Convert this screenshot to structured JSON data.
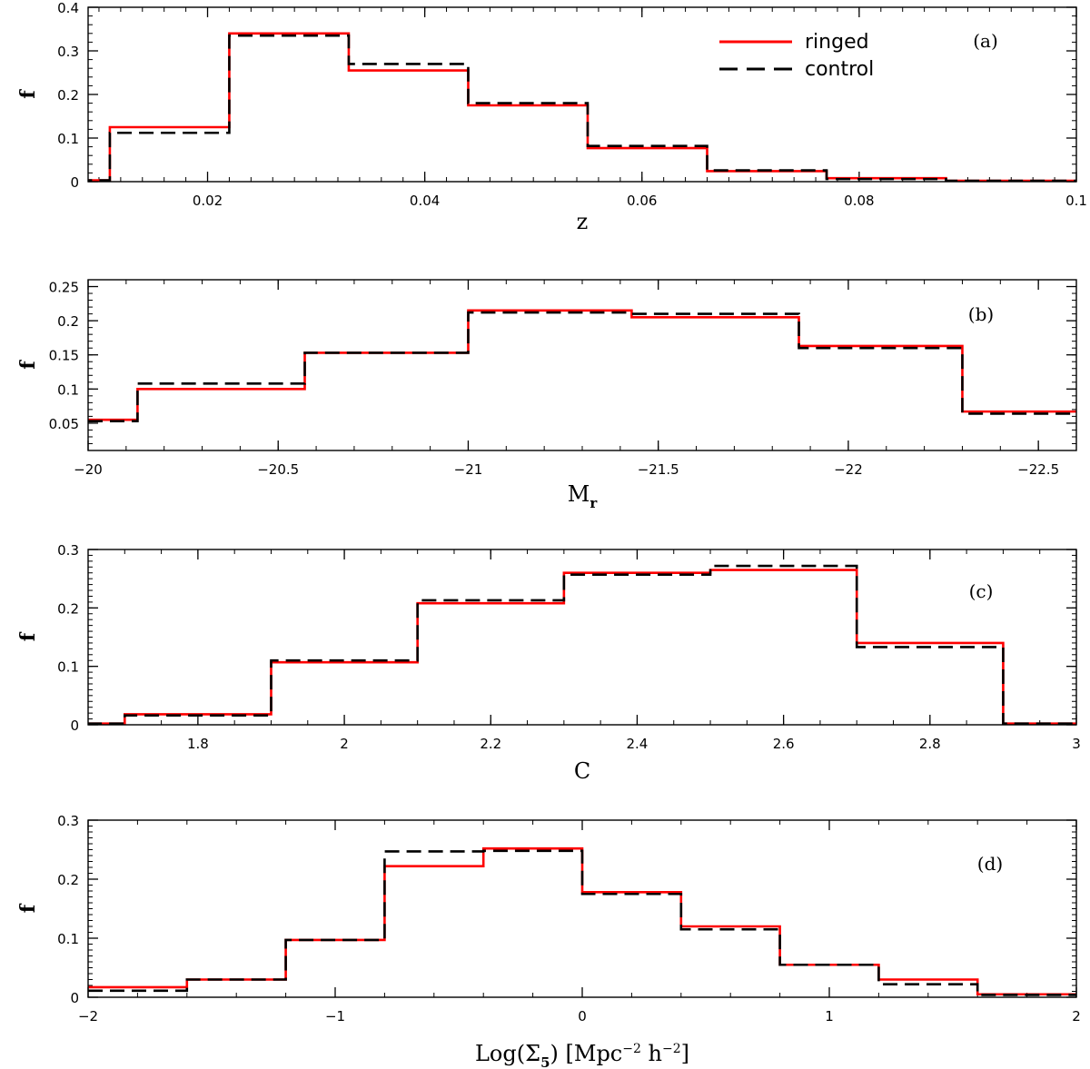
{
  "legend": {
    "ringed": "ringed",
    "control": "control"
  },
  "colors": {
    "ringed": "#ff0000",
    "control": "#000000",
    "axis": "#000000"
  },
  "chart_data": [
    {
      "type": "histogram",
      "panel": "(a)",
      "xlabel": "z",
      "ylabel": "f",
      "xlim": [
        0.009,
        0.1
      ],
      "ylim": [
        0,
        0.4
      ],
      "xticks": [
        0.02,
        0.04,
        0.06,
        0.08,
        0.1
      ],
      "xtick_labels": [
        "0.02",
        "0.04",
        "0.06",
        "0.08",
        "0.1"
      ],
      "yticks": [
        0,
        0.1,
        0.2,
        0.3,
        0.4
      ],
      "ytick_labels": [
        "0",
        "0.1",
        "0.2",
        "0.3",
        "0.4"
      ],
      "bin_edges": [
        0,
        0.011,
        0.022,
        0.033,
        0.044,
        0.055,
        0.066,
        0.077,
        0.088,
        0.1
      ],
      "series": [
        {
          "name": "ringed",
          "values": [
            0.003,
            0.125,
            0.34,
            0.255,
            0.175,
            0.077,
            0.024,
            0.008,
            0.002
          ]
        },
        {
          "name": "control",
          "values": [
            0.003,
            0.112,
            0.335,
            0.27,
            0.18,
            0.082,
            0.026,
            0.006,
            0.002
          ]
        }
      ]
    },
    {
      "type": "histogram",
      "panel": "(b)",
      "xlabel": "M",
      "xlabel_sub": "r",
      "ylabel": "f",
      "xlim": [
        -20,
        -22.6
      ],
      "ylim": [
        0.01,
        0.26
      ],
      "xticks": [
        -20,
        -20.5,
        -21,
        -21.5,
        -22,
        -22.5
      ],
      "xtick_labels": [
        "−20",
        "−20.5",
        "−21",
        "−21.5",
        "−22",
        "−22.5"
      ],
      "yticks": [
        0.05,
        0.1,
        0.15,
        0.2,
        0.25
      ],
      "ytick_labels": [
        "0.05",
        "0.1",
        "0.15",
        "0.2",
        "0.25"
      ],
      "bin_edges": [
        -20,
        -20.13,
        -20.57,
        -21.0,
        -21.43,
        -21.87,
        -22.3,
        -22.6
      ],
      "series": [
        {
          "name": "ringed",
          "values": [
            0.055,
            0.1,
            0.153,
            0.215,
            0.205,
            0.163,
            0.067
          ]
        },
        {
          "name": "control",
          "values": [
            0.053,
            0.108,
            0.153,
            0.212,
            0.21,
            0.16,
            0.064
          ]
        }
      ]
    },
    {
      "type": "histogram",
      "panel": "(c)",
      "xlabel": "C",
      "ylabel": "f",
      "xlim": [
        1.65,
        3.0
      ],
      "ylim": [
        0,
        0.3
      ],
      "xticks": [
        1.8,
        2,
        2.2,
        2.4,
        2.6,
        2.8,
        3
      ],
      "xtick_labels": [
        "1.8",
        "2",
        "2.2",
        "2.4",
        "2.6",
        "2.8",
        "3"
      ],
      "yticks": [
        0,
        0.1,
        0.2,
        0.3
      ],
      "ytick_labels": [
        "0",
        "0.1",
        "0.2",
        "0.3"
      ],
      "bin_edges": [
        1.5,
        1.7,
        1.9,
        2.1,
        2.3,
        2.5,
        2.7,
        2.9,
        3.0
      ],
      "series": [
        {
          "name": "ringed",
          "values": [
            0.002,
            0.018,
            0.107,
            0.208,
            0.26,
            0.265,
            0.14,
            0.002
          ]
        },
        {
          "name": "control",
          "values": [
            0.002,
            0.016,
            0.11,
            0.213,
            0.257,
            0.272,
            0.133,
            0.002
          ]
        }
      ]
    },
    {
      "type": "histogram",
      "panel": "(d)",
      "xlabel": "Log(Σ",
      "xlabel_sub": "5",
      "xlabel_rest": ") [Mpc",
      "xlabel_sup1": "−2",
      "xlabel_mid": " h",
      "xlabel_sup2": "−2",
      "xlabel_end": "]",
      "ylabel": "f",
      "xlim": [
        -2,
        2
      ],
      "ylim": [
        0,
        0.3
      ],
      "xticks": [
        -2,
        -1,
        0,
        1,
        2
      ],
      "xtick_labels": [
        "−2",
        "−1",
        "0",
        "1",
        "2"
      ],
      "yticks": [
        0,
        0.1,
        0.2,
        0.3
      ],
      "ytick_labels": [
        "0",
        "0.1",
        "0.2",
        "0.3"
      ],
      "bin_edges": [
        -2,
        -1.6,
        -1.2,
        -0.8,
        -0.4,
        0,
        0.4,
        0.8,
        1.2,
        1.6,
        2
      ],
      "series": [
        {
          "name": "ringed",
          "values": [
            0.017,
            0.03,
            0.097,
            0.222,
            0.252,
            0.178,
            0.12,
            0.055,
            0.03,
            0.005
          ]
        },
        {
          "name": "control",
          "values": [
            0.011,
            0.03,
            0.097,
            0.247,
            0.248,
            0.175,
            0.115,
            0.055,
            0.022,
            0.004
          ]
        }
      ]
    }
  ]
}
